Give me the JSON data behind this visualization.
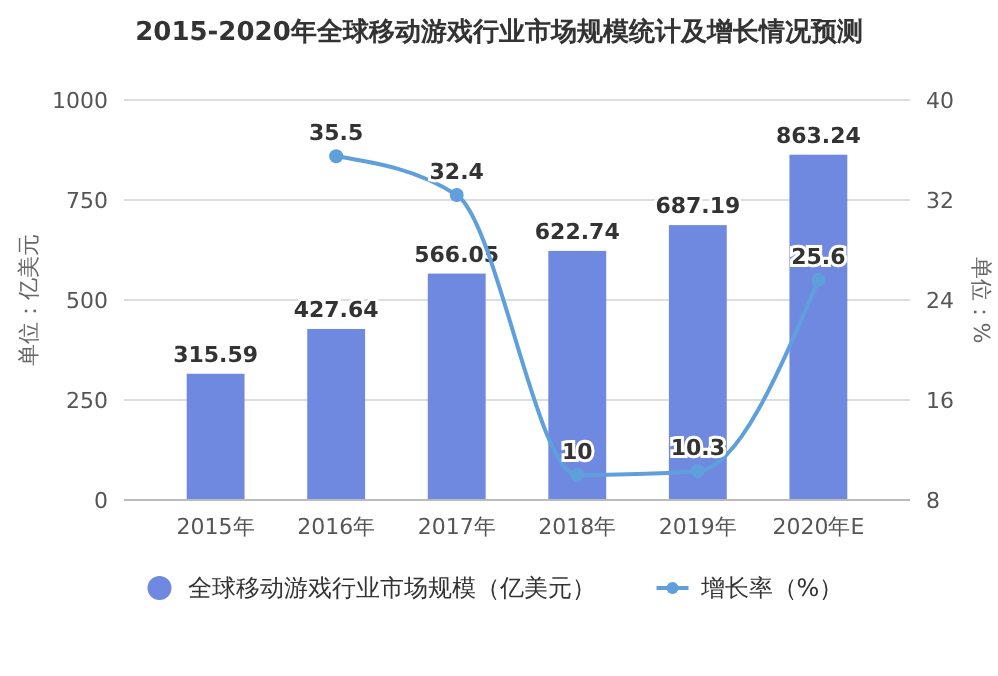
{
  "chart_data": {
    "type": "bar",
    "title": "2015-2020年全球移动游戏行业市场规模统计及增长情况预测",
    "ylabel": "单位：亿美元",
    "y2label": "单位：%",
    "categories": [
      "2015年",
      "2016年",
      "2017年",
      "2018年",
      "2019年",
      "2020年E"
    ],
    "series": [
      {
        "name": "全球移动游戏行业市场规模（亿美元）",
        "color": "#7089e0",
        "values": [
          315.59,
          427.64,
          566.05,
          622.74,
          687.19,
          863.24
        ]
      },
      {
        "name": "增长率（%）",
        "type": "line",
        "axis": "y2",
        "color": "#5fa0dc",
        "marker": "circle",
        "values": [
          null,
          35.5,
          32.4,
          10,
          10.3,
          25.6
        ]
      }
    ],
    "ylim": [
      0,
      1000
    ],
    "yticks": [
      0,
      250,
      500,
      750,
      1000
    ],
    "y2lim": [
      8,
      40
    ],
    "y2ticks": [
      8,
      16,
      24,
      32,
      40
    ],
    "grid": "y",
    "legend": "bottom",
    "data_labels": true
  }
}
